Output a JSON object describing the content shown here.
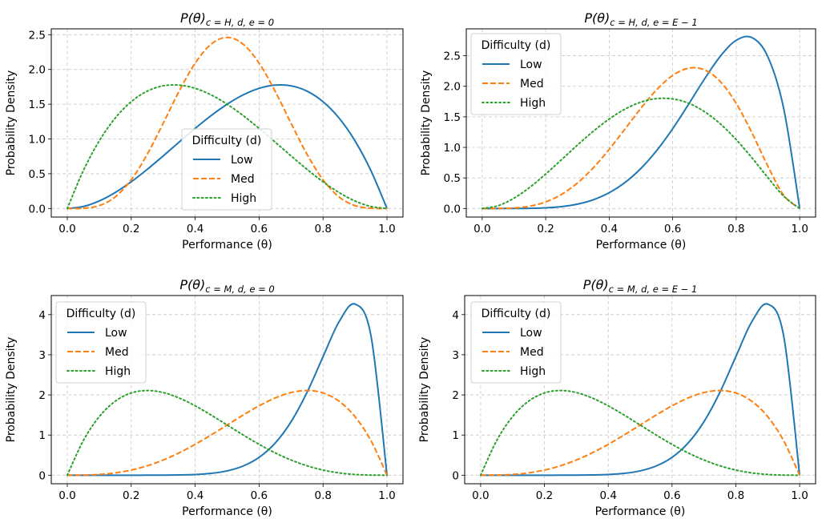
{
  "chart_data": [
    {
      "type": "line",
      "title": {
        "main": "P(θ)",
        "sub": "c = H, d, e = 0"
      },
      "xlabel": "Performance (θ)",
      "ylabel": "Probability Density",
      "xlim": [
        -0.05,
        1.05
      ],
      "ylim": [
        -0.123,
        2.584
      ],
      "xticks": [
        "0.0",
        "0.2",
        "0.4",
        "0.6",
        "0.8",
        "1.0"
      ],
      "yticks": [
        "0.0",
        "0.5",
        "1.0",
        "1.5",
        "2.0",
        "2.5"
      ],
      "grid": true,
      "legend": {
        "title": "Difficulty (d)",
        "placement": "lower-center"
      },
      "x": [
        0,
        0.05,
        0.1,
        0.15,
        0.2,
        0.25,
        0.3,
        0.35,
        0.4,
        0.45,
        0.5,
        0.55,
        0.6,
        0.65,
        0.7,
        0.75,
        0.8,
        0.85,
        0.9,
        0.95,
        1
      ],
      "series": [
        {
          "name": "Low",
          "color": "#1f77b4",
          "style": "solid",
          "values": [
            0,
            0.0285,
            0.108,
            0.2295,
            0.384,
            0.5625,
            0.756,
            0.9555,
            1.152,
            1.3365,
            1.5,
            1.6335,
            1.728,
            1.7745,
            1.764,
            1.6875,
            1.536,
            1.3005,
            0.972,
            0.5415,
            0
          ]
        },
        {
          "name": "Med",
          "color": "#ff7f0e",
          "style": "dashed",
          "values": [
            0,
            0.0032,
            0.0413,
            0.1665,
            0.4129,
            0.7786,
            1.2252,
            1.6877,
            2.0902,
            2.3639,
            2.4609,
            2.3639,
            2.0902,
            1.6877,
            1.2252,
            0.7786,
            0.4129,
            0.1665,
            0.0413,
            0.0032,
            0
          ]
        },
        {
          "name": "High",
          "color": "#2ca02c",
          "style": "dotted",
          "values": [
            0,
            0.5415,
            0.972,
            1.3005,
            1.536,
            1.6875,
            1.764,
            1.7745,
            1.728,
            1.6335,
            1.5,
            1.3365,
            1.152,
            0.9555,
            0.756,
            0.5625,
            0.384,
            0.2295,
            0.108,
            0.0285,
            0
          ]
        }
      ]
    },
    {
      "type": "line",
      "title": {
        "main": "P(θ)",
        "sub": "c = H, d, e = E − 1"
      },
      "xlabel": "Performance (θ)",
      "ylabel": "Probability Density",
      "xlim": [
        -0.05,
        1.05
      ],
      "ylim": [
        -0.14,
        2.94
      ],
      "xticks": [
        "0.0",
        "0.2",
        "0.4",
        "0.6",
        "0.8",
        "1.0"
      ],
      "yticks": [
        "0.0",
        "0.5",
        "1.0",
        "1.5",
        "2.0",
        "2.5"
      ],
      "grid": true,
      "legend": {
        "title": "Difficulty (d)",
        "placement": "upper-left"
      },
      "x": [
        0,
        0.05,
        0.1,
        0.15,
        0.2,
        0.25,
        0.3,
        0.35,
        0.4,
        0.45,
        0.5,
        0.55,
        0.6,
        0.65,
        0.7,
        0.75,
        0.8,
        0.85,
        0.9,
        0.95,
        1
      ],
      "series": [
        {
          "name": "Low",
          "color": "#1f77b4",
          "style": "solid",
          "values": [
            0,
            0,
            0.0004,
            0.0027,
            0.0108,
            0.0308,
            0.0714,
            0.1434,
            0.258,
            0.4263,
            0.6563,
            0.9512,
            1.3064,
            1.7056,
            2.1177,
            2.4917,
            2.7525,
            2.7953,
            2.48,
            1.6249,
            0
          ]
        },
        {
          "name": "Med",
          "color": "#ff7f0e",
          "style": "dashed",
          "values": [
            0,
            0.0006,
            0.0085,
            0.0384,
            0.1075,
            0.2307,
            0.4167,
            0.6657,
            0.9677,
            1.3025,
            1.6406,
            1.9457,
            2.1773,
            2.2961,
            2.2689,
            2.0764,
            1.7203,
            1.2332,
            0.6889,
            0.2138,
            0
          ]
        },
        {
          "name": "High",
          "color": "#2ca02c",
          "style": "dotted",
          "values": [
            0,
            0.0456,
            0.1681,
            0.3472,
            0.5635,
            0.7993,
            1.0379,
            1.2639,
            1.4643,
            1.6264,
            1.7406,
            1.7982,
            1.7934,
            1.7229,
            1.5852,
            1.3845,
            1.1266,
            0.8265,
            0.504,
            0.199,
            0
          ]
        }
      ]
    },
    {
      "type": "line",
      "title": {
        "main": "P(θ)",
        "sub": "c = M, d, e = 0"
      },
      "xlabel": "Performance (θ)",
      "ylabel": "Probability Density",
      "xlim": [
        -0.05,
        1.05
      ],
      "ylim": [
        -0.213,
        4.475
      ],
      "xticks": [
        "0.0",
        "0.2",
        "0.4",
        "0.6",
        "0.8",
        "1.0"
      ],
      "yticks": [
        "0",
        "1",
        "2",
        "3",
        "4"
      ],
      "grid": true,
      "legend": {
        "title": "Difficulty (d)",
        "placement": "upper-left"
      },
      "x": [
        0,
        0.05,
        0.1,
        0.15,
        0.2,
        0.25,
        0.3,
        0.35,
        0.4,
        0.45,
        0.5,
        0.55,
        0.6,
        0.65,
        0.7,
        0.75,
        0.8,
        0.85,
        0.9,
        0.95,
        1
      ],
      "series": [
        {
          "name": "Low",
          "color": "#1f77b4",
          "style": "solid",
          "values": [
            0,
            0,
            0,
            0,
            0,
            0.0003,
            0.0015,
            0.0056,
            0.0173,
            0.0458,
            0.1074,
            0.228,
            0.4434,
            0.7974,
            1.3317,
            2.0648,
            2.9528,
            3.8217,
            4.2616,
            3.4664,
            0
          ]
        },
        {
          "name": "Med",
          "color": "#ff7f0e",
          "style": "dashed",
          "values": [
            0,
            0.0024,
            0.018,
            0.0574,
            0.128,
            0.2344,
            0.378,
            0.5574,
            0.768,
            1.0024,
            1.25,
            1.4974,
            1.728,
            1.9224,
            2.058,
            2.1094,
            2.048,
            1.8424,
            1.458,
            0.8574,
            0
          ]
        },
        {
          "name": "High",
          "color": "#2ca02c",
          "style": "dotted",
          "values": [
            0,
            0.8574,
            1.458,
            1.8424,
            2.048,
            2.1094,
            2.058,
            1.9224,
            1.728,
            1.4974,
            1.25,
            1.0024,
            0.768,
            0.5574,
            0.378,
            0.2344,
            0.128,
            0.0574,
            0.018,
            0.0024,
            0
          ]
        }
      ]
    },
    {
      "type": "line",
      "title": {
        "main": "P(θ)",
        "sub": "c = M, d, e = E − 1"
      },
      "xlabel": "Performance (θ)",
      "ylabel": "Probability Density",
      "xlim": [
        -0.05,
        1.05
      ],
      "ylim": [
        -0.213,
        4.475
      ],
      "xticks": [
        "0.0",
        "0.2",
        "0.4",
        "0.6",
        "0.8",
        "1.0"
      ],
      "yticks": [
        "0",
        "1",
        "2",
        "3",
        "4"
      ],
      "grid": true,
      "legend": {
        "title": "Difficulty (d)",
        "placement": "upper-left"
      },
      "x": [
        0,
        0.05,
        0.1,
        0.15,
        0.2,
        0.25,
        0.3,
        0.35,
        0.4,
        0.45,
        0.5,
        0.55,
        0.6,
        0.65,
        0.7,
        0.75,
        0.8,
        0.85,
        0.9,
        0.95,
        1
      ],
      "series": [
        {
          "name": "Low",
          "color": "#1f77b4",
          "style": "solid",
          "values": [
            0,
            0,
            0,
            0,
            0,
            0.0003,
            0.0015,
            0.0056,
            0.0173,
            0.0458,
            0.1074,
            0.228,
            0.4434,
            0.7974,
            1.3317,
            2.0648,
            2.9528,
            3.8217,
            4.2616,
            3.4664,
            0
          ]
        },
        {
          "name": "Med",
          "color": "#ff7f0e",
          "style": "dashed",
          "values": [
            0,
            0.0024,
            0.018,
            0.0574,
            0.128,
            0.2344,
            0.378,
            0.5574,
            0.768,
            1.0024,
            1.25,
            1.4974,
            1.728,
            1.9224,
            2.058,
            2.1094,
            2.048,
            1.8424,
            1.458,
            0.8574,
            0
          ]
        },
        {
          "name": "High",
          "color": "#2ca02c",
          "style": "dotted",
          "values": [
            0,
            0.8574,
            1.458,
            1.8424,
            2.048,
            2.1094,
            2.058,
            1.9224,
            1.728,
            1.4974,
            1.25,
            1.0024,
            0.768,
            0.5574,
            0.378,
            0.2344,
            0.128,
            0.0574,
            0.018,
            0.0024,
            0
          ]
        }
      ]
    }
  ]
}
